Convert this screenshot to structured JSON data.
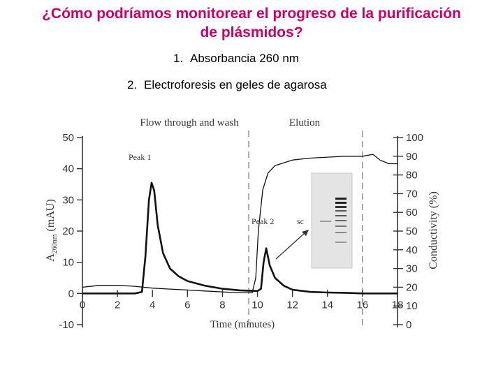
{
  "slide": {
    "title_line1": "¿Cómo podríamos monitorear el progreso de la purificación",
    "title_line2": "de plásmidos?",
    "bullets": [
      {
        "num": "1.",
        "text": "Absorbancia 260 nm"
      },
      {
        "num": "2.",
        "text": "Electroforesis en geles de agarosa"
      }
    ]
  },
  "colors": {
    "title": "#cc0066",
    "text": "#000000",
    "axis": "#333333"
  },
  "chart_data": {
    "type": "line",
    "xlabel": "Time (minutes)",
    "ylabel_left": "A260nm (mAU)",
    "ylabel_left_main": "A",
    "ylabel_left_sub": "260nm",
    "ylabel_left_unit": " (mAU)",
    "ylabel_right": "Conductivity (%)",
    "xlim": [
      0,
      18
    ],
    "ylim_left": [
      -10,
      50
    ],
    "ylim_right": [
      0,
      100
    ],
    "x_ticks": [
      "0",
      "2",
      "4",
      "6",
      "8",
      "10",
      "12",
      "14",
      "16",
      "18"
    ],
    "y_left_ticks": [
      "50",
      "40",
      "30",
      "20",
      "10",
      "0",
      "-10"
    ],
    "y_right_ticks": [
      "100",
      "90",
      "80",
      "70",
      "60",
      "50",
      "40",
      "30",
      "20",
      "10",
      "0"
    ],
    "phases": [
      {
        "label": "Flow through and wash",
        "start": 0,
        "end": 9.5
      },
      {
        "label": "Elution",
        "start": 9.5,
        "end": 18
      }
    ],
    "annotations": {
      "peak1": "Peak 1",
      "peak2": "Peak 2",
      "sc": "sc"
    },
    "grid": false,
    "series": [
      {
        "axis": "left",
        "points": [
          [
            0,
            0
          ],
          [
            3,
            0
          ],
          [
            3.4,
            0.5
          ],
          [
            3.6,
            12
          ],
          [
            3.8,
            30
          ],
          [
            3.95,
            35.5
          ],
          [
            4.1,
            33
          ],
          [
            4.3,
            22
          ],
          [
            4.6,
            13
          ],
          [
            5,
            8
          ],
          [
            5.5,
            5.5
          ],
          [
            6,
            4
          ],
          [
            7,
            2.5
          ],
          [
            8,
            1.5
          ],
          [
            9,
            1
          ],
          [
            10,
            0.8
          ],
          [
            10.2,
            1.5
          ],
          [
            10.35,
            10
          ],
          [
            10.5,
            14.5
          ],
          [
            10.7,
            9
          ],
          [
            11,
            5
          ],
          [
            11.5,
            2.5
          ],
          [
            12,
            1.2
          ],
          [
            13,
            0.5
          ],
          [
            14,
            0.3
          ],
          [
            15,
            0.2
          ],
          [
            16,
            0
          ],
          [
            17,
            0
          ],
          [
            18,
            0
          ]
        ]
      },
      {
        "axis": "right",
        "points": [
          [
            0,
            20
          ],
          [
            1,
            21
          ],
          [
            2,
            21
          ],
          [
            3,
            20.5
          ],
          [
            4,
            19.5
          ],
          [
            5,
            19
          ],
          [
            6,
            18.5
          ],
          [
            7,
            18
          ],
          [
            8,
            17.5
          ],
          [
            9,
            17
          ],
          [
            9.7,
            17
          ],
          [
            9.9,
            25
          ],
          [
            10.05,
            50
          ],
          [
            10.3,
            72
          ],
          [
            10.6,
            81
          ],
          [
            11,
            85
          ],
          [
            12,
            88
          ],
          [
            13,
            89
          ],
          [
            14,
            89.5
          ],
          [
            15,
            90
          ],
          [
            16,
            90
          ],
          [
            16.6,
            91
          ],
          [
            17,
            88
          ],
          [
            17.5,
            86
          ],
          [
            18,
            86
          ]
        ]
      }
    ]
  }
}
